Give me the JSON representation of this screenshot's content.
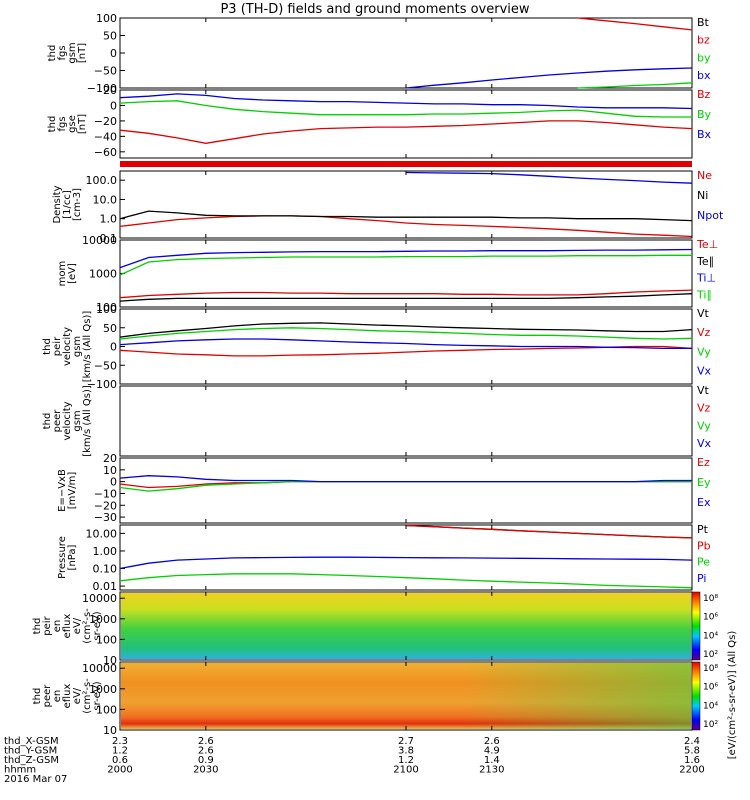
{
  "title": "P3 (TH-D) fields and ground moments overview",
  "colors": {
    "red": "#e00000",
    "green": "#00d000",
    "blue": "#0000e0",
    "black": "#000000"
  },
  "colorbar_ticks_top": [
    "10⁸",
    "10⁶",
    "10⁴",
    "10²"
  ],
  "colorbar_ticks_bottom": [
    "10⁸",
    "10⁶",
    "10⁴",
    "10²"
  ],
  "colorbar_label": "[eV/(cm²-s-sr-eV)] (All Qs)",
  "bottom_axis": {
    "row_labels": [
      "thd_X-GSM",
      "thd_Y-GSM",
      "thd_Z-GSM",
      "hhmm",
      "2016 Mar 07"
    ],
    "columns": [
      [
        "2.3",
        "1.2",
        "0.6",
        "2000"
      ],
      [
        "2.6",
        "2.6",
        "0.9",
        "2030"
      ],
      [
        "2.7",
        "3.8",
        "1.2",
        "2100"
      ],
      [
        "2.6",
        "4.9",
        "1.4",
        "2130"
      ],
      [
        "2.4",
        "5.8",
        "1.6",
        "2200"
      ]
    ]
  },
  "chart_data": [
    {
      "type": "line",
      "panel": "fgs gsm Bt/bx/by/bz",
      "ylabel": [
        "thd",
        "fgs",
        "gsm",
        "[nT]"
      ],
      "yticks": [
        "100",
        "50",
        "0",
        "−50",
        "−100"
      ],
      "ylim": [
        -100,
        100
      ],
      "legend": [
        "Bt",
        "bz",
        "by",
        "bx"
      ],
      "legend_colors": [
        "black",
        "red",
        "green",
        "blue"
      ],
      "x": [
        2000,
        2010,
        2020,
        2030,
        2040,
        2050,
        2060,
        2070,
        2080,
        2090,
        2100,
        2110,
        2120,
        2130,
        2140,
        2150,
        2160,
        2170,
        2180,
        2190,
        2200
      ],
      "series": [
        {
          "name": "Bt",
          "color": "black",
          "values": [
            null,
            null,
            null,
            null,
            null,
            null,
            null,
            null,
            null,
            null,
            null,
            null,
            null,
            null,
            null,
            null,
            null,
            null,
            null,
            null,
            null
          ]
        },
        {
          "name": "bz",
          "color": "red",
          "values": [
            null,
            null,
            null,
            null,
            null,
            null,
            null,
            null,
            null,
            null,
            null,
            null,
            null,
            null,
            null,
            null,
            100,
            92,
            84,
            75,
            66
          ]
        },
        {
          "name": "by",
          "color": "green",
          "values": [
            null,
            null,
            null,
            null,
            null,
            null,
            null,
            null,
            null,
            null,
            null,
            null,
            null,
            null,
            null,
            null,
            -100,
            -97,
            -93,
            -90,
            -85
          ]
        },
        {
          "name": "bx",
          "color": "blue",
          "values": [
            null,
            null,
            null,
            null,
            null,
            null,
            null,
            null,
            null,
            null,
            -100,
            -92,
            -85,
            -77,
            -70,
            -63,
            -57,
            -52,
            -48,
            -45,
            -43
          ]
        }
      ]
    },
    {
      "type": "line",
      "panel": "fgs gse B",
      "ylabel": [
        "thd",
        "fgs",
        "gse",
        "[nT]"
      ],
      "yticks": [
        "20",
        "0",
        "−20",
        "−40",
        "−60"
      ],
      "ylim": [
        -68,
        20
      ],
      "legend": [
        "Bz",
        "By",
        "Bx"
      ],
      "legend_colors": [
        "red",
        "green",
        "blue"
      ],
      "x": [
        2000,
        2010,
        2020,
        2030,
        2040,
        2050,
        2060,
        2070,
        2080,
        2090,
        2100,
        2110,
        2120,
        2130,
        2140,
        2150,
        2160,
        2170,
        2180,
        2190,
        2200
      ],
      "series": [
        {
          "name": "Bz",
          "color": "red",
          "values": [
            -32,
            -36,
            -42,
            -49,
            -43,
            -37,
            -33,
            -30,
            -29,
            -28,
            -28,
            -27,
            -26,
            -24,
            -22,
            -20,
            -20,
            -22,
            -25,
            -28,
            -30
          ]
        },
        {
          "name": "By",
          "color": "green",
          "values": [
            3,
            5,
            6,
            0,
            -5,
            -8,
            -10,
            -12,
            -12,
            -12,
            -12,
            -11,
            -11,
            -10,
            -9,
            -7,
            -6,
            -10,
            -14,
            -15,
            -15
          ]
        },
        {
          "name": "Bx",
          "color": "blue",
          "values": [
            10,
            12,
            15,
            13,
            9,
            7,
            6,
            5,
            5,
            4,
            3,
            2,
            2,
            1,
            1,
            0,
            -2,
            -3,
            -3,
            -3,
            -4
          ]
        }
      ]
    },
    {
      "type": "line",
      "panel": "Density",
      "ylabel": [
        "Density",
        "[1/cc]",
        "[cm-3]"
      ],
      "yticks": [
        "100.0",
        "10.0",
        "1.0",
        "0.1"
      ],
      "ylim": [
        0.1,
        300
      ],
      "yscale": "log",
      "legend": [
        "Ne",
        "Ni",
        "Npot"
      ],
      "legend_colors": [
        "red",
        "black",
        "blue"
      ],
      "x": [
        2000,
        2010,
        2020,
        2030,
        2040,
        2050,
        2060,
        2070,
        2080,
        2090,
        2100,
        2110,
        2120,
        2130,
        2140,
        2150,
        2160,
        2170,
        2180,
        2190,
        2200
      ],
      "series": [
        {
          "name": "Ne",
          "color": "red",
          "values": [
            0.4,
            0.6,
            0.9,
            1.1,
            1.3,
            1.4,
            1.4,
            1.3,
            1.0,
            0.8,
            0.6,
            0.5,
            0.45,
            0.4,
            0.35,
            0.3,
            0.25,
            0.2,
            0.16,
            0.14,
            0.12
          ]
        },
        {
          "name": "Ni",
          "color": "black",
          "values": [
            1.0,
            2.5,
            2.0,
            1.5,
            1.4,
            1.4,
            1.4,
            1.3,
            1.3,
            1.2,
            1.2,
            1.2,
            1.2,
            1.2,
            1.1,
            1.1,
            1.0,
            1.0,
            1.0,
            0.9,
            0.8
          ]
        },
        {
          "name": "Npot",
          "color": "blue",
          "values": [
            null,
            null,
            null,
            null,
            null,
            null,
            null,
            null,
            null,
            null,
            250,
            240,
            230,
            220,
            190,
            160,
            130,
            110,
            95,
            80,
            70
          ]
        }
      ]
    },
    {
      "type": "line",
      "panel": "mom Te/Ti",
      "ylabel": [
        "mom",
        "[eV]"
      ],
      "yticks": [
        "10000",
        "1000",
        "100"
      ],
      "ylim": [
        100,
        10000
      ],
      "yscale": "log",
      "legend": [
        "Te⊥",
        "Te∥",
        "Ti⊥",
        "Ti∥"
      ],
      "legend_colors": [
        "red",
        "black",
        "blue",
        "green"
      ],
      "x": [
        2000,
        2010,
        2020,
        2030,
        2040,
        2050,
        2060,
        2070,
        2080,
        2090,
        2100,
        2110,
        2120,
        2130,
        2140,
        2150,
        2160,
        2170,
        2180,
        2190,
        2200
      ],
      "series": [
        {
          "name": "Te⊥",
          "color": "red",
          "values": [
            190,
            220,
            240,
            260,
            270,
            270,
            260,
            260,
            250,
            250,
            250,
            250,
            240,
            240,
            230,
            230,
            230,
            250,
            280,
            300,
            320
          ]
        },
        {
          "name": "Te∥",
          "color": "black",
          "values": [
            150,
            170,
            180,
            180,
            180,
            180,
            180,
            180,
            180,
            180,
            180,
            180,
            180,
            180,
            180,
            180,
            190,
            200,
            210,
            230,
            250
          ]
        },
        {
          "name": "Ti⊥",
          "color": "blue",
          "values": [
            1500,
            3000,
            3500,
            4000,
            4200,
            4300,
            4400,
            4500,
            4500,
            4500,
            4600,
            4700,
            4700,
            4800,
            4800,
            4800,
            4900,
            5000,
            5000,
            5100,
            5200
          ]
        },
        {
          "name": "Ti∥",
          "color": "green",
          "values": [
            900,
            2200,
            2600,
            2800,
            2900,
            3000,
            3100,
            3100,
            3100,
            3100,
            3200,
            3200,
            3200,
            3300,
            3300,
            3300,
            3400,
            3400,
            3400,
            3500,
            3500
          ]
        }
      ]
    },
    {
      "type": "line",
      "panel": "peir velocity gsm",
      "ylabel": [
        "thd",
        "peir",
        "velocity",
        "gsm",
        "[km/s (All Qs)]"
      ],
      "yticks": [
        "100",
        "50",
        "0",
        "−50",
        "−100"
      ],
      "ylim": [
        -100,
        100
      ],
      "legend": [
        "Vt",
        "Vz",
        "Vy",
        "Vx"
      ],
      "legend_colors": [
        "black",
        "red",
        "green",
        "blue"
      ],
      "x": [
        2000,
        2010,
        2020,
        2030,
        2040,
        2050,
        2060,
        2070,
        2080,
        2090,
        2100,
        2110,
        2120,
        2130,
        2140,
        2150,
        2160,
        2170,
        2180,
        2190,
        2200
      ],
      "series": [
        {
          "name": "Vt",
          "color": "black",
          "values": [
            25,
            35,
            42,
            48,
            55,
            60,
            62,
            63,
            60,
            57,
            55,
            52,
            50,
            48,
            46,
            45,
            44,
            42,
            40,
            40,
            45
          ]
        },
        {
          "name": "Vz",
          "color": "red",
          "values": [
            -10,
            -15,
            -20,
            -22,
            -25,
            -25,
            -23,
            -22,
            -20,
            -18,
            -15,
            -12,
            -10,
            -8,
            -7,
            -5,
            -4,
            -2,
            0,
            0,
            -5
          ]
        },
        {
          "name": "Vy",
          "color": "green",
          "values": [
            20,
            28,
            35,
            40,
            45,
            48,
            50,
            48,
            45,
            42,
            40,
            38,
            35,
            32,
            30,
            30,
            28,
            25,
            22,
            20,
            22
          ]
        },
        {
          "name": "Vx",
          "color": "blue",
          "values": [
            5,
            10,
            15,
            18,
            20,
            20,
            18,
            15,
            12,
            10,
            8,
            5,
            3,
            2,
            0,
            0,
            0,
            -2,
            -3,
            -5,
            -5
          ]
        }
      ]
    },
    {
      "type": "line",
      "panel": "peer velocity gsm",
      "ylabel": [
        "thd",
        "peer",
        "velocity",
        "gsm",
        "[km/s (All Qs)]"
      ],
      "yticks": [],
      "legend": [
        "Vt",
        "Vz",
        "Vy",
        "Vx"
      ],
      "legend_colors": [
        "black",
        "red",
        "green",
        "blue"
      ],
      "series": []
    },
    {
      "type": "line",
      "panel": "E = -VxB",
      "ylabel": [
        "E=−VxB",
        "[mV/m]"
      ],
      "yticks": [
        "20",
        "10",
        "0",
        "−10",
        "−20",
        "−30"
      ],
      "ylim": [
        -35,
        20
      ],
      "legend": [
        "Ez",
        "Ey",
        "Ex"
      ],
      "legend_colors": [
        "red",
        "green",
        "blue"
      ],
      "x": [
        2000,
        2010,
        2020,
        2030,
        2040,
        2050,
        2060,
        2070,
        2080,
        2090,
        2100,
        2110,
        2120,
        2130,
        2140,
        2150,
        2160,
        2170,
        2180,
        2190,
        2200
      ],
      "series": [
        {
          "name": "Ez",
          "color": "red",
          "values": [
            -2,
            -5,
            -4,
            -2,
            -1,
            -1,
            0,
            0,
            0,
            0,
            0,
            0,
            0,
            0,
            0,
            0,
            0,
            0,
            0,
            0,
            0
          ]
        },
        {
          "name": "Ey",
          "color": "green",
          "values": [
            -5,
            -8,
            -6,
            -3,
            -2,
            -1,
            0,
            0,
            0,
            0,
            0,
            0,
            0,
            0,
            0,
            0,
            0,
            0,
            0,
            0,
            0
          ]
        },
        {
          "name": "Ex",
          "color": "blue",
          "values": [
            3,
            5,
            4,
            2,
            1,
            1,
            1,
            0,
            0,
            0,
            0,
            0,
            0,
            0,
            0,
            0,
            0,
            0,
            0,
            1,
            1
          ]
        }
      ]
    },
    {
      "type": "line",
      "panel": "Pressure",
      "ylabel": [
        "Pressure",
        "[nPa]"
      ],
      "yticks": [
        "10.00",
        "1.00",
        "0.10",
        "0.01"
      ],
      "ylim": [
        0.006,
        30
      ],
      "yscale": "log",
      "legend": [
        "Pt",
        "Pb",
        "Pe",
        "Pi"
      ],
      "legend_colors": [
        "black",
        "red",
        "green",
        "blue"
      ],
      "x": [
        2000,
        2010,
        2020,
        2030,
        2040,
        2050,
        2060,
        2070,
        2080,
        2090,
        2100,
        2110,
        2120,
        2130,
        2140,
        2150,
        2160,
        2170,
        2180,
        2190,
        2200
      ],
      "series": [
        {
          "name": "Pt",
          "color": "black",
          "values": [
            null,
            null,
            null,
            null,
            null,
            null,
            null,
            null,
            null,
            null,
            28,
            24,
            20,
            17,
            14,
            12,
            10,
            8.5,
            7.2,
            6.2,
            5.5
          ]
        },
        {
          "name": "Pb",
          "color": "red",
          "values": [
            null,
            null,
            null,
            null,
            null,
            null,
            null,
            null,
            null,
            null,
            28,
            24,
            20,
            17,
            14,
            12,
            10,
            8.5,
            7.2,
            6.2,
            5.5
          ]
        },
        {
          "name": "Pe",
          "color": "green",
          "values": [
            0.02,
            0.03,
            0.04,
            0.045,
            0.05,
            0.05,
            0.05,
            0.045,
            0.04,
            0.035,
            0.03,
            0.026,
            0.022,
            0.019,
            0.017,
            0.015,
            0.013,
            0.011,
            0.01,
            0.009,
            0.008
          ]
        },
        {
          "name": "Pi",
          "color": "blue",
          "values": [
            0.1,
            0.2,
            0.3,
            0.35,
            0.4,
            0.42,
            0.43,
            0.44,
            0.44,
            0.43,
            0.42,
            0.41,
            0.4,
            0.39,
            0.38,
            0.37,
            0.36,
            0.35,
            0.34,
            0.33,
            0.3
          ]
        }
      ]
    },
    {
      "type": "heatmap",
      "panel": "peir en eflux",
      "ylabel": [
        "thd",
        "peir",
        "en",
        "eflux",
        "eV/",
        "(cm²-s-",
        "sr-eV)"
      ],
      "yticks": [
        "10000",
        "1000",
        "100",
        "10"
      ],
      "ylim": [
        10,
        20000
      ],
      "yscale": "log"
    },
    {
      "type": "heatmap",
      "panel": "peer en eflux",
      "ylabel": [
        "thd",
        "peer",
        "en",
        "eflux",
        "eV/",
        "(cm²-s-",
        "sr-eV)"
      ],
      "yticks": [
        "10000",
        "1000",
        "100",
        "10"
      ],
      "ylim": [
        10,
        20000
      ],
      "yscale": "log"
    }
  ]
}
